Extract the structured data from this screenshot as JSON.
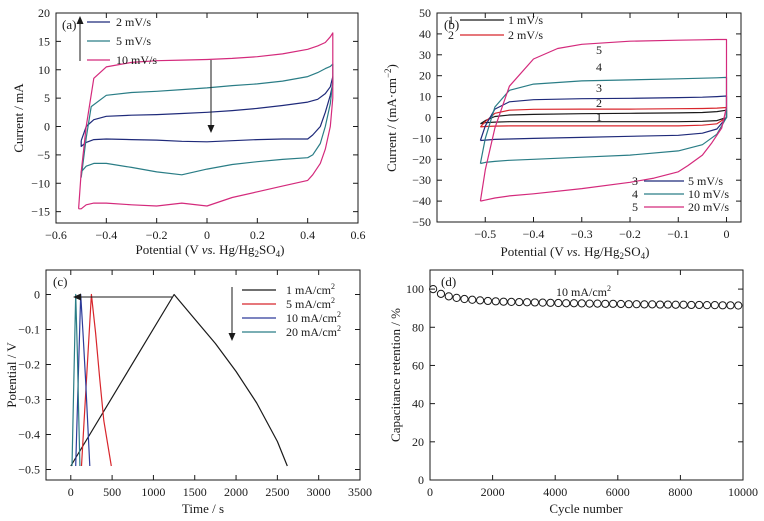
{
  "panels": [
    {
      "key": "a",
      "label": "(a)",
      "xlabel_parts": [
        "Potential (V ",
        "vs.",
        " Hg/Hg",
        "2",
        "SO",
        "4",
        ")"
      ],
      "ylabel": "Current / mA",
      "legend": [
        "2 mV/s",
        "5 mV/s",
        "10 mV/s"
      ]
    },
    {
      "key": "b",
      "label": "(b)",
      "xlabel_parts": [
        "Potential (V ",
        "vs.",
        " Hg/Hg",
        "2",
        "SO",
        "4",
        ")"
      ],
      "ylabel_parts": [
        "Current / (mA·cm",
        "−2",
        ")"
      ],
      "legend_top": [
        {
          "num": "1",
          "text": "1 mV/s"
        },
        {
          "num": "2",
          "text": "2 mV/s"
        }
      ],
      "legend_bottom": [
        {
          "num": "3",
          "text": "5 mV/s"
        },
        {
          "num": "4",
          "text": "10 mV/s"
        },
        {
          "num": "5",
          "text": "20 mV/s"
        }
      ],
      "curve_numbers": [
        "5",
        "4",
        "3",
        "2",
        "1"
      ]
    },
    {
      "key": "c",
      "label": "(c)",
      "xlabel": "Time / s",
      "ylabel": "Potential / V",
      "legend_parts": [
        [
          "1 mA/cm",
          "2"
        ],
        [
          "5 mA/cm",
          "2"
        ],
        [
          "10 mA/cm",
          "2"
        ],
        [
          "20 mA/cm",
          "2"
        ]
      ]
    },
    {
      "key": "d",
      "label": "(d)",
      "xlabel": "Cycle number",
      "ylabel": "Capacitance retention / %",
      "annotation_parts": [
        "10 mA/cm",
        "2"
      ]
    }
  ],
  "colors": {
    "black": "#1a1a1a",
    "navy": "#1f2a7a",
    "teal": "#2a7d86",
    "magenta": "#d42a7c",
    "red": "#d8262c",
    "blue": "#2d3b9a"
  },
  "chart_data": [
    {
      "panel": "a",
      "type": "line",
      "xlim": [
        -0.6,
        0.6
      ],
      "ylim": [
        -17,
        20
      ],
      "xticks": [
        -0.6,
        -0.4,
        -0.2,
        0,
        0.2,
        0.4,
        0.6
      ],
      "yticks": [
        -15,
        -10,
        -5,
        0,
        5,
        10,
        15,
        20
      ],
      "series": [
        {
          "name": "2 mV/s",
          "color": "navy",
          "x": [
            -0.5,
            -0.48,
            -0.45,
            -0.4,
            -0.3,
            -0.2,
            -0.1,
            0.0,
            0.1,
            0.2,
            0.3,
            0.4,
            0.44,
            0.47,
            0.49,
            0.5,
            0.5,
            0.49,
            0.47,
            0.45,
            0.42,
            0.4,
            0.3,
            0.2,
            0.1,
            0.0,
            -0.1,
            -0.2,
            -0.3,
            -0.4,
            -0.45,
            -0.48,
            -0.5,
            -0.5
          ],
          "y": [
            -2.5,
            0.0,
            1.2,
            1.8,
            2.0,
            2.1,
            2.3,
            2.5,
            2.8,
            3.2,
            3.7,
            4.3,
            4.8,
            5.8,
            7.0,
            8.8,
            7.5,
            5.5,
            2.5,
            0.0,
            -1.5,
            -2.2,
            -2.2,
            -2.3,
            -2.5,
            -2.7,
            -2.6,
            -2.4,
            -2.3,
            -2.2,
            -2.3,
            -2.8,
            -3.5,
            -2.5
          ]
        },
        {
          "name": "5 mV/s",
          "color": "teal",
          "x": [
            -0.5,
            -0.48,
            -0.46,
            -0.4,
            -0.3,
            -0.2,
            -0.1,
            0.0,
            0.1,
            0.2,
            0.3,
            0.4,
            0.44,
            0.47,
            0.49,
            0.5,
            0.5,
            0.49,
            0.47,
            0.45,
            0.42,
            0.4,
            0.3,
            0.2,
            0.1,
            0.0,
            -0.1,
            -0.2,
            -0.3,
            -0.4,
            -0.45,
            -0.48,
            -0.5,
            -0.5
          ],
          "y": [
            -9.0,
            -2.0,
            3.5,
            5.5,
            6.0,
            6.2,
            6.5,
            6.8,
            7.2,
            7.5,
            8.0,
            8.8,
            9.5,
            10.2,
            10.6,
            11.0,
            8.0,
            4.0,
            0.0,
            -3.0,
            -5.0,
            -5.5,
            -5.8,
            -6.2,
            -6.7,
            -7.5,
            -8.5,
            -8.0,
            -7.2,
            -6.5,
            -6.5,
            -7.0,
            -8.0,
            -9.0
          ]
        },
        {
          "name": "10 mV/s",
          "color": "magenta",
          "x": [
            -0.51,
            -0.5,
            -0.48,
            -0.45,
            -0.4,
            -0.3,
            -0.2,
            -0.1,
            0.0,
            0.1,
            0.2,
            0.3,
            0.4,
            0.44,
            0.47,
            0.49,
            0.5,
            0.5,
            0.49,
            0.47,
            0.45,
            0.42,
            0.4,
            0.3,
            0.2,
            0.1,
            0.0,
            -0.1,
            -0.2,
            -0.3,
            -0.4,
            -0.45,
            -0.48,
            -0.5,
            -0.51
          ],
          "y": [
            -14.5,
            -8.0,
            0.0,
            8.5,
            10.5,
            11.3,
            11.6,
            11.7,
            11.8,
            12.0,
            12.3,
            12.8,
            13.6,
            14.2,
            14.8,
            15.8,
            16.5,
            5.0,
            0.0,
            -4.0,
            -6.5,
            -8.5,
            -9.5,
            -10.5,
            -11.5,
            -12.5,
            -14.0,
            -13.5,
            -14.0,
            -13.8,
            -13.5,
            -13.5,
            -13.8,
            -14.5,
            -14.5
          ]
        }
      ]
    },
    {
      "panel": "b",
      "type": "line",
      "xlim": [
        -0.6,
        0.03
      ],
      "ylim": [
        -50,
        50
      ],
      "xticks": [
        -0.5,
        -0.4,
        -0.3,
        -0.2,
        -0.1,
        0
      ],
      "yticks": [
        -50,
        -40,
        -30,
        -20,
        -10,
        0,
        10,
        20,
        30,
        40,
        50
      ],
      "series": [
        {
          "name": "1 mV/s",
          "color": "black",
          "x": [
            -0.51,
            -0.5,
            -0.48,
            -0.45,
            -0.4,
            -0.3,
            -0.2,
            -0.1,
            -0.05,
            -0.02,
            0.0,
            0.0,
            -0.02,
            -0.05,
            -0.1,
            -0.2,
            -0.3,
            -0.4,
            -0.45,
            -0.48,
            -0.5,
            -0.51
          ],
          "y": [
            -3.0,
            -1.5,
            0.5,
            1.2,
            1.5,
            1.8,
            2.0,
            2.2,
            2.4,
            2.8,
            3.5,
            0.0,
            -1.5,
            -1.8,
            -2.0,
            -2.0,
            -2.0,
            -2.0,
            -2.0,
            -2.2,
            -2.5,
            -3.0
          ]
        },
        {
          "name": "2 mV/s",
          "color": "red",
          "x": [
            -0.51,
            -0.5,
            -0.48,
            -0.45,
            -0.4,
            -0.3,
            -0.2,
            -0.1,
            -0.05,
            -0.02,
            0.0,
            0.0,
            -0.02,
            -0.05,
            -0.1,
            -0.2,
            -0.3,
            -0.4,
            -0.45,
            -0.48,
            -0.5,
            -0.51
          ],
          "y": [
            -4.5,
            -2.0,
            2.0,
            3.5,
            3.9,
            4.0,
            4.0,
            4.2,
            4.3,
            4.5,
            4.8,
            0.0,
            -3.0,
            -3.7,
            -4.0,
            -4.0,
            -4.0,
            -4.0,
            -4.0,
            -4.1,
            -4.3,
            -4.5
          ]
        },
        {
          "name": "5 mV/s",
          "color": "navy",
          "x": [
            -0.51,
            -0.5,
            -0.48,
            -0.45,
            -0.4,
            -0.3,
            -0.2,
            -0.1,
            -0.05,
            -0.02,
            0.0,
            0.0,
            -0.02,
            -0.05,
            -0.1,
            -0.2,
            -0.3,
            -0.4,
            -0.45,
            -0.48,
            -0.5,
            -0.51
          ],
          "y": [
            -11.0,
            -4.0,
            4.0,
            7.5,
            8.5,
            9.0,
            9.2,
            9.5,
            9.7,
            10.0,
            10.3,
            0.0,
            -5.5,
            -7.5,
            -8.5,
            -9.0,
            -9.5,
            -10.0,
            -10.3,
            -10.5,
            -10.8,
            -11.0
          ]
        },
        {
          "name": "10 mV/s",
          "color": "teal",
          "x": [
            -0.51,
            -0.5,
            -0.48,
            -0.45,
            -0.4,
            -0.3,
            -0.2,
            -0.1,
            -0.05,
            -0.02,
            0.0,
            0.0,
            -0.02,
            -0.05,
            -0.1,
            -0.2,
            -0.3,
            -0.4,
            -0.45,
            -0.48,
            -0.5,
            -0.51
          ],
          "y": [
            -22.0,
            -10.0,
            5.0,
            13.0,
            16.0,
            17.5,
            18.0,
            18.5,
            18.8,
            19.0,
            19.2,
            0.0,
            -8.0,
            -13.0,
            -16.0,
            -18.0,
            -19.0,
            -20.0,
            -20.5,
            -21.0,
            -21.5,
            -22.0
          ]
        },
        {
          "name": "20 mV/s",
          "color": "magenta",
          "x": [
            -0.51,
            -0.5,
            -0.48,
            -0.45,
            -0.4,
            -0.35,
            -0.3,
            -0.2,
            -0.1,
            -0.05,
            -0.02,
            0.0,
            0.0,
            -0.01,
            -0.03,
            -0.05,
            -0.08,
            -0.1,
            -0.15,
            -0.2,
            -0.3,
            -0.4,
            -0.45,
            -0.48,
            -0.5,
            -0.51
          ],
          "y": [
            -40.0,
            -25.0,
            -5.0,
            15.0,
            28.0,
            33.0,
            35.0,
            36.5,
            37.0,
            37.2,
            37.3,
            37.3,
            5.0,
            -5.0,
            -12.0,
            -18.0,
            -23.0,
            -26.0,
            -29.0,
            -31.0,
            -34.0,
            -36.5,
            -37.5,
            -38.5,
            -39.5,
            -40.0
          ]
        }
      ]
    },
    {
      "panel": "c",
      "type": "line",
      "xlim": [
        -300,
        3500
      ],
      "ylim": [
        -0.53,
        0.07
      ],
      "xticks": [
        0,
        500,
        1000,
        1500,
        2000,
        2500,
        3000,
        3500
      ],
      "yticks": [
        -0.5,
        -0.4,
        -0.3,
        -0.2,
        -0.1,
        0
      ],
      "series": [
        {
          "name": "1 mA/cm2",
          "color": "black",
          "x": [
            0,
            1250,
            1500,
            1750,
            2000,
            2250,
            2500,
            2620
          ],
          "y": [
            -0.49,
            0.0,
            -0.07,
            -0.14,
            -0.22,
            -0.31,
            -0.42,
            -0.49
          ]
        },
        {
          "name": "5 mA/cm2",
          "color": "red",
          "x": [
            130,
            250,
            300,
            350,
            400,
            490
          ],
          "y": [
            -0.49,
            0.0,
            -0.11,
            -0.24,
            -0.36,
            -0.49
          ]
        },
        {
          "name": "10 mA/cm2",
          "color": "blue",
          "x": [
            60,
            120,
            150,
            180,
            230
          ],
          "y": [
            -0.49,
            0.0,
            -0.12,
            -0.25,
            -0.49
          ]
        },
        {
          "name": "20 mA/cm2",
          "color": "teal",
          "x": [
            15,
            60,
            80,
            95,
            110
          ],
          "y": [
            -0.49,
            0.0,
            -0.17,
            -0.33,
            -0.49
          ]
        }
      ]
    },
    {
      "panel": "d",
      "type": "scatter",
      "xlim": [
        0,
        10000
      ],
      "ylim": [
        0,
        110
      ],
      "xticks": [
        0,
        2000,
        4000,
        6000,
        8000,
        10000
      ],
      "yticks": [
        0,
        20,
        40,
        60,
        80,
        100
      ],
      "series": [
        {
          "name": "10 mA/cm2",
          "color": "black",
          "x": [
            100,
            350,
            600,
            850,
            1100,
            1350,
            1600,
            1850,
            2100,
            2350,
            2600,
            2850,
            3100,
            3350,
            3600,
            3850,
            4100,
            4350,
            4600,
            4850,
            5100,
            5350,
            5600,
            5850,
            6100,
            6350,
            6600,
            6850,
            7100,
            7350,
            7600,
            7850,
            8100,
            8350,
            8600,
            8850,
            9100,
            9350,
            9600,
            9850
          ],
          "y": [
            100,
            97.5,
            96.2,
            95.4,
            94.8,
            94.4,
            94.1,
            93.8,
            93.6,
            93.4,
            93.3,
            93.2,
            93.1,
            93.0,
            92.9,
            92.8,
            92.7,
            92.6,
            92.6,
            92.5,
            92.4,
            92.4,
            92.3,
            92.3,
            92.2,
            92.1,
            92.1,
            92.0,
            92.0,
            91.9,
            91.9,
            91.8,
            91.8,
            91.7,
            91.7,
            91.6,
            91.6,
            91.5,
            91.5,
            91.4
          ]
        }
      ]
    }
  ]
}
